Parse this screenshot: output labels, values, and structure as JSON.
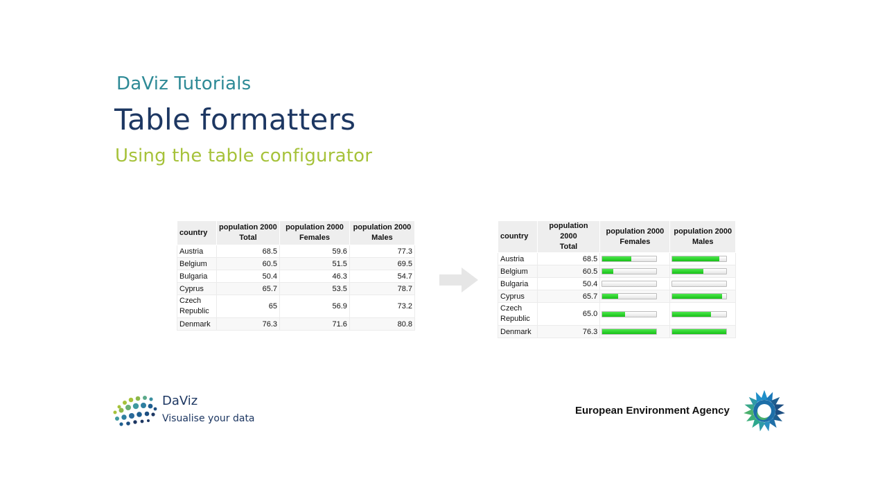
{
  "slide": {
    "series_label": "DaViz Tutorials",
    "title": "Table formatters",
    "subtitle": "Using the table configurator"
  },
  "tables": {
    "headers": {
      "country": "country",
      "total_line1": "population 2000",
      "total_line2": "Total",
      "females_line1": "population 2000",
      "females_line2": "Females",
      "males_line1": "population 2000",
      "males_line2": "Males"
    },
    "before": {
      "rows": [
        {
          "country": "Austria",
          "total": "68.5",
          "females": "59.6",
          "males": "77.3"
        },
        {
          "country": "Belgium",
          "total": "60.5",
          "females": "51.5",
          "males": "69.5"
        },
        {
          "country": "Bulgaria",
          "total": "50.4",
          "females": "46.3",
          "males": "54.7"
        },
        {
          "country": "Cyprus",
          "total": "65.7",
          "females": "53.5",
          "males": "78.7"
        },
        {
          "country": "Czech Republic",
          "total": "65",
          "females": "56.9",
          "males": "73.2"
        },
        {
          "country": "Denmark",
          "total": "76.3",
          "females": "71.6",
          "males": "80.8"
        }
      ]
    },
    "after": {
      "bar_color": "#22cc22",
      "rows": [
        {
          "country": "Austria",
          "total": "68.5",
          "females_fill": 0.53,
          "males_fill": 0.87
        },
        {
          "country": "Belgium",
          "total": "60.5",
          "females_fill": 0.2,
          "males_fill": 0.57
        },
        {
          "country": "Bulgaria",
          "total": "50.4",
          "females_fill": 0.0,
          "males_fill": 0.0
        },
        {
          "country": "Cyprus",
          "total": "65.7",
          "females_fill": 0.29,
          "males_fill": 0.92
        },
        {
          "country": "Czech Republic",
          "total": "65.0",
          "females_fill": 0.42,
          "males_fill": 0.71
        },
        {
          "country": "Denmark",
          "total": "76.3",
          "females_fill": 1.0,
          "males_fill": 1.0
        }
      ]
    }
  },
  "footer": {
    "daviz_name": "DaViz",
    "daviz_tagline": "Visualise your data",
    "eea_name": "European Environment Agency"
  },
  "colors": {
    "series_label": "#2e8a96",
    "title": "#1d3762",
    "subtitle": "#a6c23a",
    "arrow": "#e6e6e6"
  },
  "icons": {
    "arrow": "right-arrow-icon",
    "daviz_logo": "daviz-dots-logo",
    "eea_logo": "eea-logo"
  }
}
